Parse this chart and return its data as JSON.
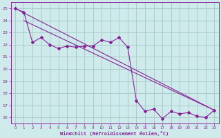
{
  "xlabel": "Windchill (Refroidissement éolien,°C)",
  "background_color": "#ceeaea",
  "grid_color": "#aacccc",
  "line_color": "#882299",
  "xlim": [
    -0.5,
    23.5
  ],
  "ylim": [
    15.5,
    25.5
  ],
  "xticks": [
    0,
    1,
    2,
    3,
    4,
    5,
    6,
    7,
    8,
    9,
    10,
    11,
    12,
    13,
    14,
    15,
    16,
    17,
    18,
    19,
    20,
    21,
    22,
    23
  ],
  "yticks": [
    16,
    17,
    18,
    19,
    20,
    21,
    22,
    23,
    24,
    25
  ],
  "series1_x": [
    0,
    1,
    2,
    3,
    4,
    5,
    6,
    7,
    8,
    9,
    10,
    11,
    12,
    13,
    14,
    15,
    16,
    17,
    18,
    19,
    20,
    21,
    22,
    23
  ],
  "series1_y": [
    25.0,
    24.7,
    22.2,
    22.6,
    22.0,
    21.7,
    21.9,
    21.8,
    21.9,
    21.9,
    22.4,
    22.2,
    22.6,
    21.8,
    17.4,
    16.5,
    16.7,
    15.9,
    16.5,
    16.3,
    16.4,
    16.1,
    16.0,
    16.6
  ],
  "trend1_x": [
    0,
    23
  ],
  "trend1_y": [
    25.0,
    16.6
  ],
  "trend2_x": [
    1,
    23
  ],
  "trend2_y": [
    24.0,
    16.6
  ]
}
